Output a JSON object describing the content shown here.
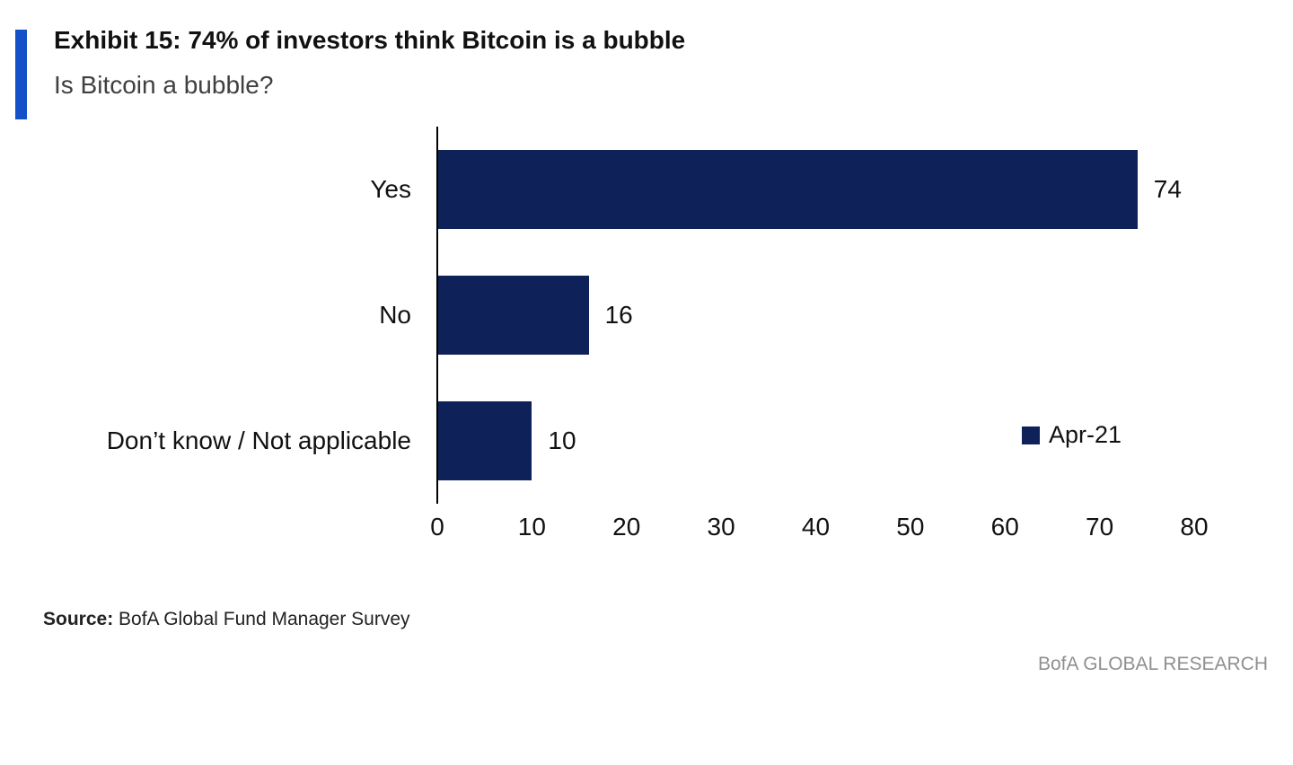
{
  "colors": {
    "accent": "#1450C8",
    "bar": "#0E2158"
  },
  "header": {
    "title": "Exhibit 15: 74% of investors think Bitcoin is a bubble",
    "subtitle": "Is Bitcoin a bubble?"
  },
  "chart_data": {
    "type": "bar",
    "orientation": "horizontal",
    "title": "Is Bitcoin a bubble?",
    "categories": [
      "Yes",
      "No",
      "Don’t know / Not applicable"
    ],
    "values": [
      74,
      16,
      10
    ],
    "xlabel": "",
    "ylabel": "",
    "xlim": [
      0,
      80
    ],
    "xticks": [
      0,
      10,
      20,
      30,
      40,
      50,
      60,
      70,
      80
    ],
    "grid": false,
    "legend": [
      {
        "label": "Apr-21",
        "color": "#0E2158"
      }
    ],
    "legend_position": "middle-right"
  },
  "footer": {
    "source_label": "Source:",
    "source_text": " BofA Global Fund Manager Survey",
    "branding": "BofA GLOBAL RESEARCH"
  }
}
